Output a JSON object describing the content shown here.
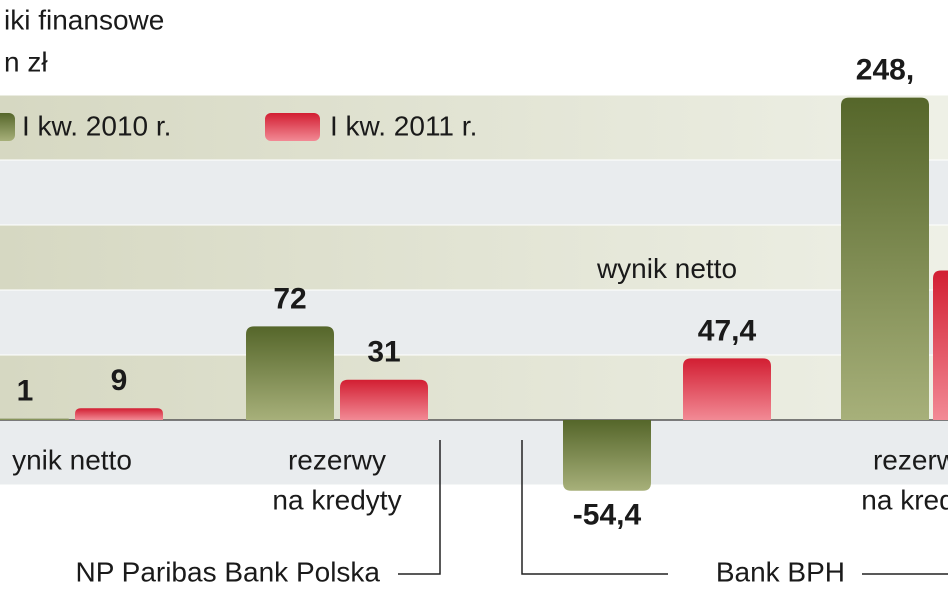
{
  "chart_data": {
    "type": "bar",
    "title": "iki finansowe",
    "subtitle": "n zł",
    "categories": [
      [
        "ynik netto"
      ],
      [
        "rezerwy",
        "na kredyty"
      ],
      [
        "wynik netto"
      ],
      [
        "rezerw",
        "na kredy"
      ]
    ],
    "series": [
      {
        "name": "I kw. 2010 r.",
        "color": "#6b7a35",
        "values": [
          1,
          72,
          -54.4,
          248
        ],
        "value_labels": [
          "1",
          "72",
          "-54,4",
          "248,"
        ]
      },
      {
        "name": "I kw. 2011 r.",
        "color": "#d8283a",
        "values": [
          9,
          31,
          47.4,
          115
        ],
        "value_labels": [
          "9",
          "31",
          "47,4",
          null
        ]
      }
    ],
    "group_labels": [
      "NP Paribas Bank Polska",
      "Bank BPH"
    ],
    "ylim": [
      -100,
      260
    ],
    "yticks": [
      -50,
      0,
      50,
      100,
      150,
      200,
      250
    ]
  }
}
